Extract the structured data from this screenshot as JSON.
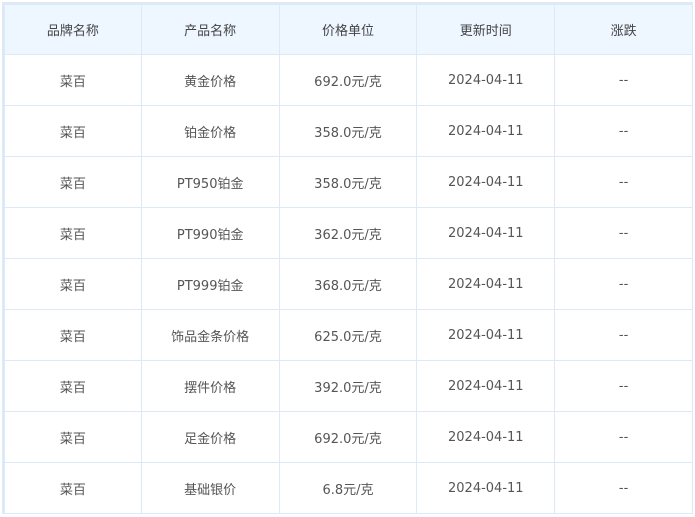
{
  "table": {
    "headers": [
      "品牌名称",
      "产品名称",
      "价格单位",
      "更新时间",
      "涨跌"
    ],
    "rows": [
      [
        "菜百",
        "黄金价格",
        "692.0元/克",
        "2024-04-11",
        "--"
      ],
      [
        "菜百",
        "铂金价格",
        "358.0元/克",
        "2024-04-11",
        "--"
      ],
      [
        "菜百",
        "PT950铂金",
        "358.0元/克",
        "2024-04-11",
        "--"
      ],
      [
        "菜百",
        "PT990铂金",
        "362.0元/克",
        "2024-04-11",
        "--"
      ],
      [
        "菜百",
        "PT999铂金",
        "368.0元/克",
        "2024-04-11",
        "--"
      ],
      [
        "菜百",
        "饰品金条价格",
        "625.0元/克",
        "2024-04-11",
        "--"
      ],
      [
        "菜百",
        "摆件价格",
        "392.0元/克",
        "2024-04-11",
        "--"
      ],
      [
        "菜百",
        "足金价格",
        "692.0元/克",
        "2024-04-11",
        "--"
      ],
      [
        "菜百",
        "基础银价",
        "6.8元/克",
        "2024-04-11",
        "--"
      ]
    ]
  }
}
